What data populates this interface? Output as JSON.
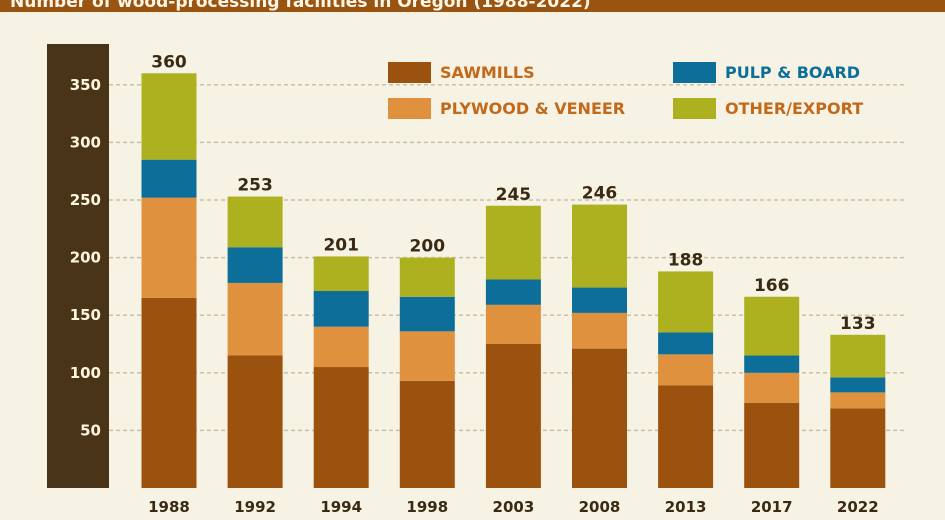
{
  "chart_data": {
    "type": "bar",
    "stacked": true,
    "title": "Number of wood-processing facilities in Oregon (1988-2022)",
    "categories": [
      "1988",
      "1992",
      "1994",
      "1998",
      "2003",
      "2008",
      "2013",
      "2017",
      "2022"
    ],
    "totals": [
      360,
      253,
      201,
      200,
      245,
      246,
      188,
      166,
      133
    ],
    "series": [
      {
        "name": "SAWMILLS",
        "color": "#9b520f",
        "values": [
          165,
          115,
          105,
          93,
          125,
          121,
          89,
          74,
          69
        ]
      },
      {
        "name": "PLYWOOD & VENEER",
        "color": "#e0913d",
        "values": [
          87,
          63,
          35,
          43,
          34,
          31,
          27,
          26,
          14
        ]
      },
      {
        "name": "PULP & BOARD",
        "color": "#0d6f99",
        "values": [
          33,
          31,
          31,
          30,
          22,
          22,
          19,
          15,
          13
        ]
      },
      {
        "name": "OTHER/EXPORT",
        "color": "#adb11f",
        "values": [
          75,
          44,
          30,
          34,
          64,
          72,
          53,
          51,
          37
        ]
      }
    ],
    "yticks": [
      50,
      100,
      150,
      200,
      250,
      300,
      350
    ],
    "ylim": [
      0,
      400
    ],
    "grid": true,
    "legend_position": "top-right",
    "colors": {
      "axis_band": "#4a3418",
      "background": "#f6f2e4",
      "grid": "#c9c0ac",
      "title_bar": "#9a5412"
    }
  }
}
